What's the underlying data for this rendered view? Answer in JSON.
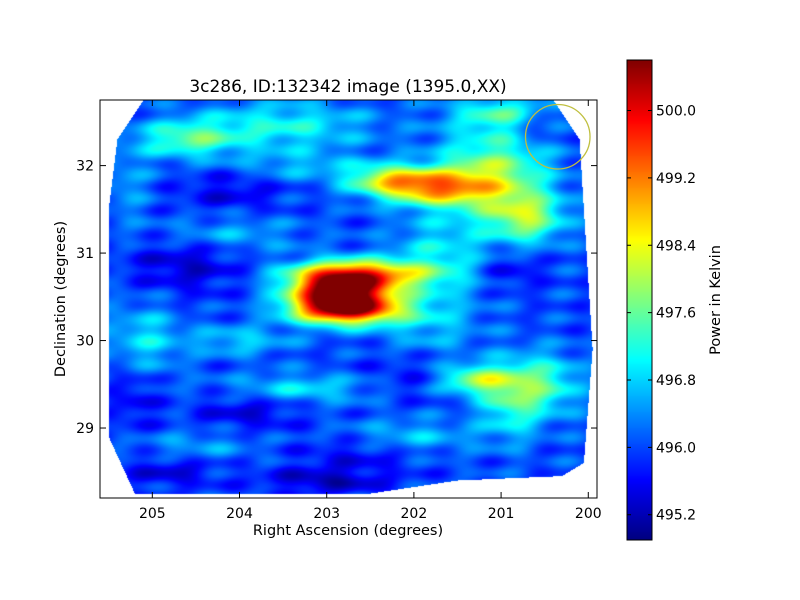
{
  "chart_data": {
    "type": "heatmap",
    "title": "3c286, ID:132342 image (1395.0,XX)",
    "xlabel": "Right Ascension (degrees)",
    "ylabel": "Declination (degrees)",
    "colorbar_label": "Power in Kelvin",
    "xlim": [
      205.6,
      199.9
    ],
    "ylim": [
      28.2,
      32.75
    ],
    "x_ticks": [
      205,
      204,
      203,
      202,
      201,
      200
    ],
    "y_ticks": [
      29,
      30,
      31,
      32
    ],
    "colorbar_range": [
      494.9,
      500.6
    ],
    "colorbar_ticks": [
      "495.2",
      "496.0",
      "496.8",
      "497.6",
      "498.4",
      "499.2",
      "500.0"
    ],
    "colormap": "jet",
    "background_level": 496.0,
    "footprint": [
      [
        205.1,
        32.75
      ],
      [
        200.4,
        32.75
      ],
      [
        200.1,
        32.3
      ],
      [
        199.95,
        29.9
      ],
      [
        200.05,
        28.6
      ],
      [
        200.3,
        28.45
      ],
      [
        201.5,
        28.4
      ],
      [
        202.5,
        28.25
      ],
      [
        204.5,
        28.25
      ],
      [
        205.2,
        28.25
      ],
      [
        205.5,
        28.9
      ],
      [
        205.5,
        31.5
      ],
      [
        205.4,
        32.3
      ]
    ],
    "features": [
      {
        "ra": 202.85,
        "dec": 30.55,
        "peak": 500.5,
        "ra_sigma": 0.38,
        "dec_sigma": 0.17
      },
      {
        "ra": 202.75,
        "dec": 30.35,
        "peak": 499.2,
        "ra_sigma": 0.45,
        "dec_sigma": 0.12
      },
      {
        "ra": 202.6,
        "dec": 30.75,
        "peak": 498.8,
        "ra_sigma": 0.55,
        "dec_sigma": 0.12
      },
      {
        "ra": 201.8,
        "dec": 31.75,
        "peak": 498.6,
        "ra_sigma": 0.45,
        "dec_sigma": 0.14
      },
      {
        "ra": 201.1,
        "dec": 31.9,
        "peak": 497.9,
        "ra_sigma": 0.45,
        "dec_sigma": 0.35
      },
      {
        "ra": 202.3,
        "dec": 31.85,
        "peak": 497.6,
        "ra_sigma": 0.35,
        "dec_sigma": 0.12
      },
      {
        "ra": 200.7,
        "dec": 31.4,
        "peak": 497.7,
        "ra_sigma": 0.3,
        "dec_sigma": 0.2
      },
      {
        "ra": 204.6,
        "dec": 32.3,
        "peak": 497.4,
        "ra_sigma": 0.4,
        "dec_sigma": 0.15
      },
      {
        "ra": 201.3,
        "dec": 29.55,
        "peak": 497.8,
        "ra_sigma": 0.3,
        "dec_sigma": 0.12
      },
      {
        "ra": 200.5,
        "dec": 29.5,
        "peak": 497.3,
        "ra_sigma": 0.3,
        "dec_sigma": 0.25
      },
      {
        "ra": 200.9,
        "dec": 29.3,
        "peak": 497.2,
        "ra_sigma": 0.25,
        "dec_sigma": 0.3
      },
      {
        "ra": 203.5,
        "dec": 32.45,
        "peak": 497.1,
        "ra_sigma": 0.7,
        "dec_sigma": 0.2
      },
      {
        "ra": 201.0,
        "dec": 32.6,
        "peak": 497.2,
        "ra_sigma": 0.4,
        "dec_sigma": 0.15
      },
      {
        "ra": 205.1,
        "dec": 30.0,
        "peak": 496.9,
        "ra_sigma": 0.3,
        "dec_sigma": 0.3
      },
      {
        "ra": 204.0,
        "dec": 30.0,
        "peak": 496.8,
        "ra_sigma": 0.4,
        "dec_sigma": 0.12
      },
      {
        "ra": 203.3,
        "dec": 29.45,
        "peak": 496.9,
        "ra_sigma": 0.6,
        "dec_sigma": 0.12
      },
      {
        "ra": 201.7,
        "dec": 31.0,
        "peak": 496.9,
        "ra_sigma": 0.4,
        "dec_sigma": 0.3
      },
      {
        "ra": 201.8,
        "dec": 30.2,
        "peak": 496.7,
        "ra_sigma": 0.4,
        "dec_sigma": 0.3
      },
      {
        "ra": 204.2,
        "dec": 31.2,
        "peak": 496.7,
        "ra_sigma": 0.6,
        "dec_sigma": 0.15
      },
      {
        "ra": 202.0,
        "dec": 28.9,
        "peak": 496.7,
        "ra_sigma": 0.5,
        "dec_sigma": 0.15
      },
      {
        "ra": 204.5,
        "dec": 28.8,
        "peak": 496.5,
        "ra_sigma": 0.5,
        "dec_sigma": 0.12
      },
      {
        "ra": 203.3,
        "dec": 32.0,
        "peak": 496.6,
        "ra_sigma": 0.5,
        "dec_sigma": 0.12
      },
      {
        "ra": 205.3,
        "dec": 31.8,
        "peak": 496.5,
        "ra_sigma": 0.2,
        "dec_sigma": 0.3
      },
      {
        "ra": 200.6,
        "dec": 32.45,
        "peak": 495.4,
        "ra_sigma": 0.2,
        "dec_sigma": 0.12
      },
      {
        "ra": 200.9,
        "dec": 30.8,
        "peak": 495.5,
        "ra_sigma": 0.25,
        "dec_sigma": 0.15
      },
      {
        "ra": 204.8,
        "dec": 28.5,
        "peak": 495.4,
        "ra_sigma": 0.35,
        "dec_sigma": 0.12
      },
      {
        "ra": 203.0,
        "dec": 28.4,
        "peak": 495.2,
        "ra_sigma": 0.5,
        "dec_sigma": 0.1
      },
      {
        "ra": 204.6,
        "dec": 30.9,
        "peak": 495.3,
        "ra_sigma": 0.45,
        "dec_sigma": 0.25
      },
      {
        "ra": 203.9,
        "dec": 29.2,
        "peak": 495.4,
        "ra_sigma": 0.4,
        "dec_sigma": 0.15
      },
      {
        "ra": 202.6,
        "dec": 28.7,
        "peak": 495.5,
        "ra_sigma": 0.5,
        "dec_sigma": 0.12
      },
      {
        "ra": 204.1,
        "dec": 31.7,
        "peak": 495.5,
        "ra_sigma": 0.4,
        "dec_sigma": 0.15
      },
      {
        "ra": 202.0,
        "dec": 29.6,
        "peak": 495.6,
        "ra_sigma": 0.4,
        "dec_sigma": 0.2
      },
      {
        "ra": 205.2,
        "dec": 29.4,
        "peak": 495.5,
        "ra_sigma": 0.2,
        "dec_sigma": 0.3
      }
    ],
    "marker_circle": {
      "ra": 200.35,
      "dec": 32.33,
      "radius_ra": 0.37,
      "color": "#bfbf3f"
    }
  }
}
